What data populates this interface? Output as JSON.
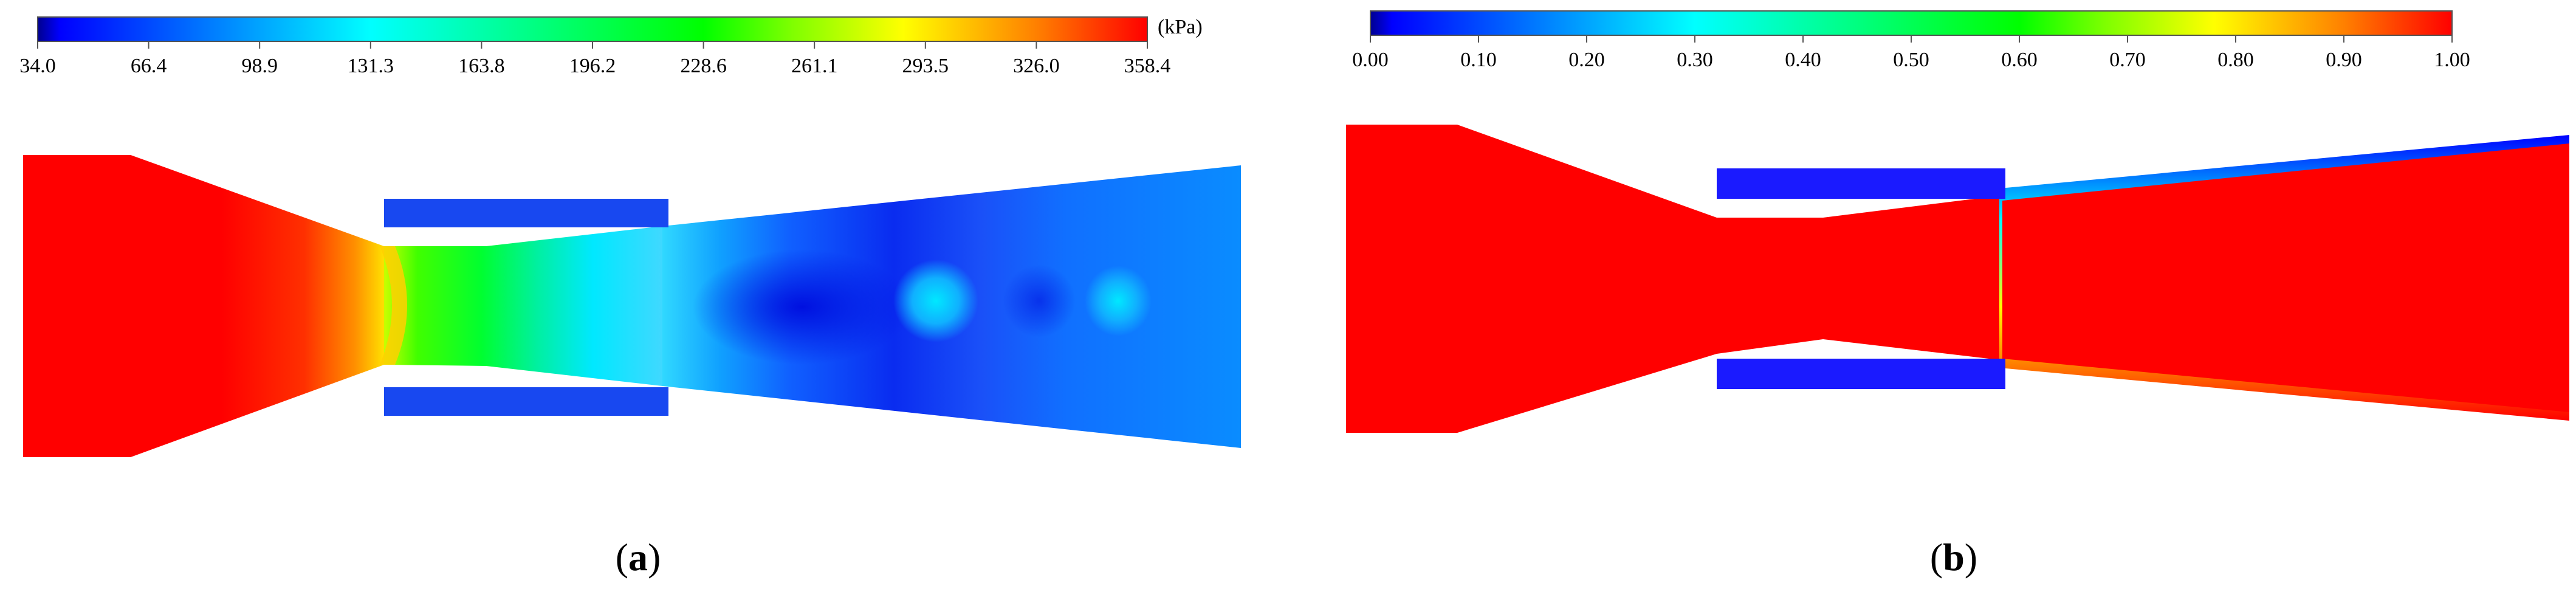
{
  "panel_a": {
    "colorbar": {
      "ticks": [
        "34.0",
        "66.4",
        "98.9",
        "131.3",
        "163.8",
        "196.2",
        "228.6",
        "261.1",
        "293.5",
        "326.0",
        "358.4"
      ],
      "unit": "(kPa)",
      "min": 34.0,
      "max": 358.4,
      "colormap": "jet",
      "orientation": "horizontal",
      "ticks_position": "below"
    },
    "caption_open": "(",
    "caption_letter": "a",
    "caption_close": ")"
  },
  "panel_b": {
    "colorbar": {
      "ticks": [
        "0.00",
        "0.10",
        "0.20",
        "0.30",
        "0.40",
        "0.50",
        "0.60",
        "0.70",
        "0.80",
        "0.90",
        "1.00"
      ],
      "min": 0.0,
      "max": 1.0,
      "colormap": "jet",
      "orientation": "horizontal",
      "ticks_position": "above"
    },
    "caption_open": "(",
    "caption_letter": "b",
    "caption_close": ")"
  },
  "colors": {
    "jet_red": "#ff0000",
    "jet_blue": "#0000ff",
    "field_blue": "#1a4cf0",
    "outlet_blue": "#0a8cff",
    "green": "#00ff00",
    "cyan": "#00ffff"
  }
}
